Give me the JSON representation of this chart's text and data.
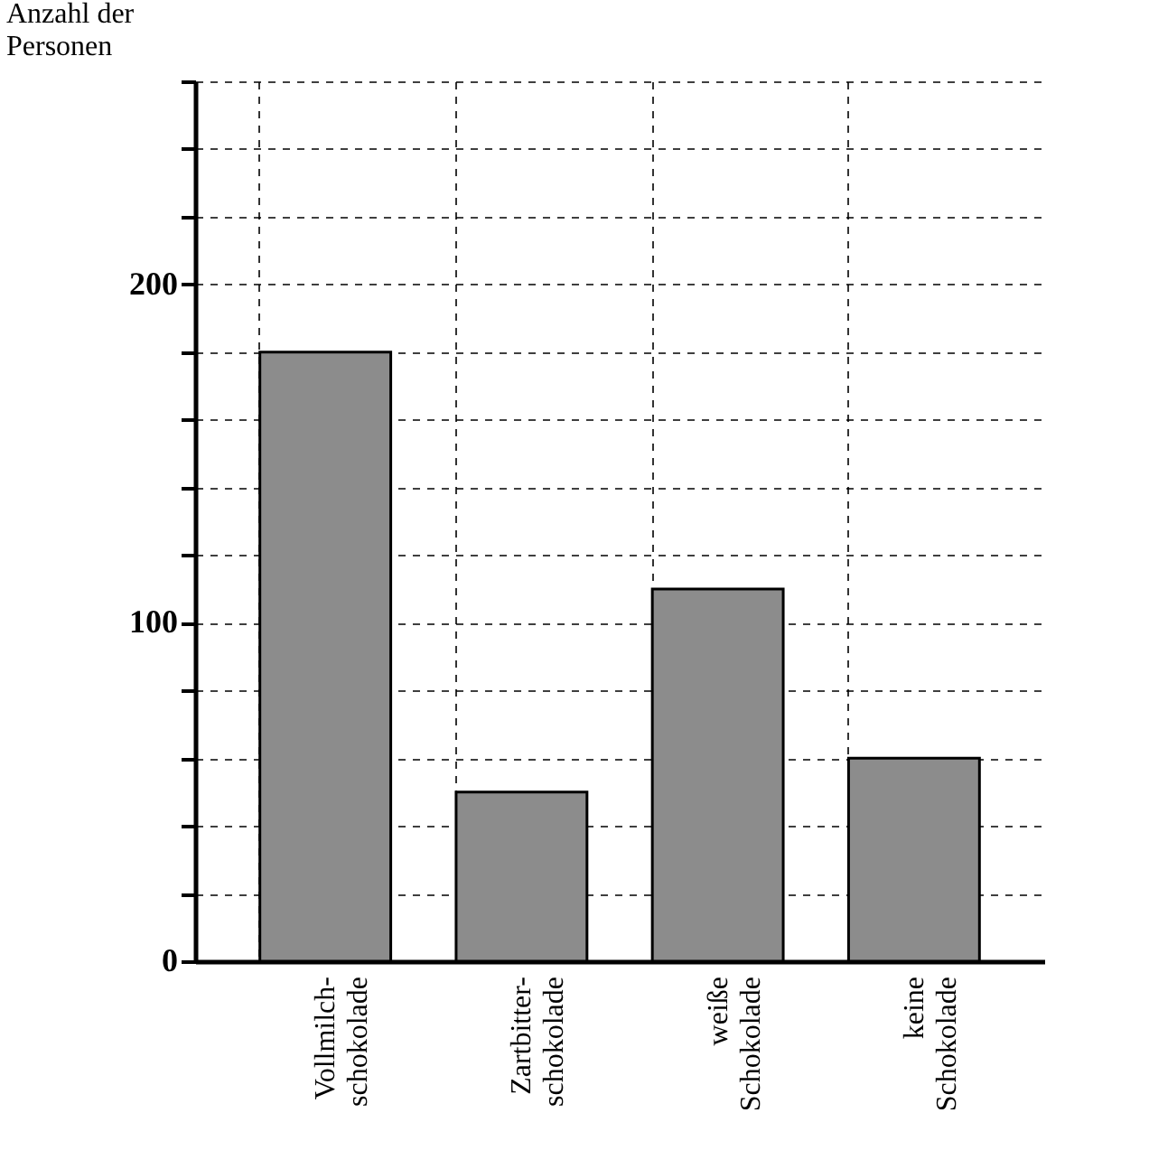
{
  "chart_data": {
    "type": "bar",
    "ylabel": "Anzahl der\nPersonen",
    "categories": [
      "Vollmilch-\nschokolade",
      "Zartbitter-\nschokolade",
      "weiße\nSchokolade",
      "keine\nSchokolade"
    ],
    "values": [
      180,
      50,
      110,
      60
    ],
    "color": "#8c8c8c",
    "ylim": [
      0,
      260
    ],
    "yticks": [
      0,
      {
        "value": 20,
        "label": null
      },
      {
        "value": 40,
        "label": null
      },
      {
        "value": 60,
        "label": null
      },
      {
        "value": 80,
        "label": null
      },
      100,
      {
        "value": 120,
        "label": null
      },
      {
        "value": 140,
        "label": null
      },
      {
        "value": 160,
        "label": null
      },
      {
        "value": 180,
        "label": null
      },
      200,
      {
        "value": 220,
        "label": null
      },
      {
        "value": 240,
        "label": null
      },
      {
        "value": 260,
        "label": null
      }
    ],
    "grid": true
  }
}
